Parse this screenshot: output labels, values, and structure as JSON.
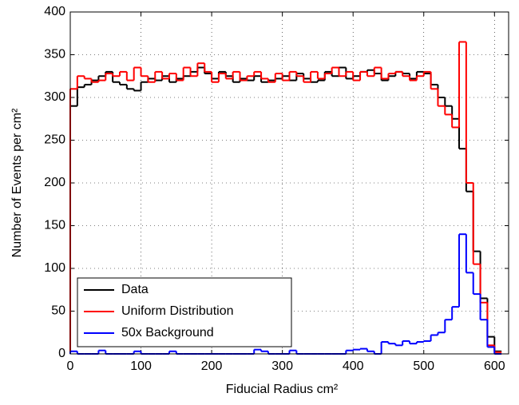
{
  "chart_data": {
    "type": "step-histogram",
    "xlabel": "Fiducial Radius cm²",
    "ylabel": "Number of Events per cm²",
    "bins": [
      0,
      10,
      20,
      30,
      40,
      50,
      60,
      70,
      80,
      90,
      100,
      110,
      120,
      130,
      140,
      150,
      160,
      170,
      180,
      190,
      200,
      210,
      220,
      230,
      240,
      250,
      260,
      270,
      280,
      290,
      300,
      310,
      320,
      330,
      340,
      350,
      360,
      370,
      380,
      390,
      400,
      410,
      420,
      430,
      440,
      450,
      460,
      470,
      480,
      490,
      500,
      510,
      520,
      530,
      540,
      550,
      560,
      570,
      580,
      590,
      600,
      610
    ],
    "series": [
      {
        "name": "Data",
        "color": "#000000",
        "values": [
          290,
          312,
          315,
          320,
          325,
          330,
          318,
          315,
          310,
          308,
          318,
          322,
          320,
          325,
          318,
          322,
          325,
          330,
          335,
          328,
          322,
          330,
          325,
          318,
          322,
          320,
          325,
          318,
          320,
          322,
          325,
          320,
          328,
          322,
          318,
          320,
          330,
          325,
          335,
          322,
          325,
          330,
          332,
          328,
          320,
          325,
          330,
          328,
          322,
          330,
          328,
          315,
          300,
          290,
          275,
          240,
          190,
          120,
          65,
          20,
          3
        ]
      },
      {
        "name": "Uniform Distribution",
        "color": "#ff0000",
        "values": [
          310,
          325,
          322,
          318,
          320,
          328,
          325,
          330,
          320,
          335,
          325,
          318,
          330,
          322,
          328,
          320,
          335,
          325,
          340,
          330,
          318,
          328,
          322,
          330,
          320,
          325,
          330,
          322,
          318,
          328,
          320,
          330,
          325,
          318,
          330,
          322,
          328,
          335,
          325,
          330,
          320,
          330,
          325,
          335,
          322,
          328,
          330,
          325,
          320,
          325,
          330,
          310,
          290,
          280,
          265,
          365,
          200,
          105,
          60,
          10,
          2
        ]
      },
      {
        "name": "50x Background",
        "color": "#0000ff",
        "values": [
          3,
          0,
          0,
          0,
          4,
          0,
          0,
          0,
          0,
          3,
          0,
          0,
          0,
          0,
          3,
          0,
          0,
          0,
          0,
          0,
          0,
          0,
          0,
          0,
          0,
          0,
          5,
          3,
          0,
          0,
          0,
          4,
          0,
          0,
          0,
          0,
          0,
          0,
          0,
          4,
          5,
          6,
          3,
          0,
          14,
          12,
          10,
          15,
          12,
          14,
          15,
          22,
          25,
          40,
          55,
          140,
          95,
          70,
          40,
          8,
          0
        ]
      }
    ],
    "xlim": [
      0,
      620
    ],
    "xticks": [
      0,
      100,
      200,
      300,
      400,
      500,
      600
    ],
    "ylim": [
      0,
      400
    ],
    "yticks": [
      0,
      50,
      100,
      150,
      200,
      250,
      300,
      350,
      400
    ],
    "grid": true,
    "legend": "lower left"
  }
}
